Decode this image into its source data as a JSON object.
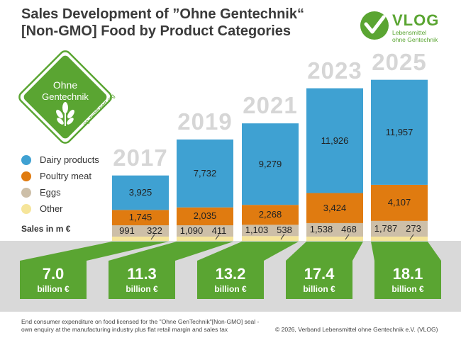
{
  "header": {
    "title_line1": "Sales Development of ”Ohne Gentechnik“",
    "title_line2": "[Non-GMO] Food by Product Categories"
  },
  "brand": {
    "name": "VLOG",
    "tagline_line1": "Lebensmittel",
    "tagline_line2": "ohne Gentechnik"
  },
  "seal": {
    "line1": "Ohne",
    "line2": "Gentechnik",
    "url": "og-zertifiziert.org"
  },
  "chart_data": {
    "type": "stacked bar",
    "categories": [
      "2017",
      "2019",
      "2021",
      "2023",
      "2025"
    ],
    "series": [
      {
        "name": "Dairy products",
        "color": "#3fa1d2",
        "values": [
          3925,
          7732,
          9279,
          11926,
          11957
        ],
        "labels": [
          "3,925",
          "7,732",
          "9,279",
          "11,926",
          "11,957"
        ]
      },
      {
        "name": "Poultry meat",
        "color": "#e07b10",
        "values": [
          1745,
          2035,
          2268,
          3424,
          4107
        ],
        "labels": [
          "1,745",
          "2,035",
          "2,268",
          "3,424",
          "4,107"
        ]
      },
      {
        "name": "Eggs",
        "color": "#cdbfa8",
        "values": [
          991,
          1090,
          1103,
          1538,
          1787
        ],
        "labels": [
          "991",
          "1,090",
          "1,103",
          "1,538",
          "1,787"
        ]
      },
      {
        "name": "Other",
        "color": "#f6e59a",
        "values": [
          322,
          411,
          538,
          468,
          273
        ],
        "labels": [
          "322",
          "411",
          "538",
          "468",
          "273"
        ]
      }
    ],
    "ylabel": "Sales in m €",
    "totals": [
      {
        "value": "7.0",
        "unit": "billion €"
      },
      {
        "value": "11.3",
        "unit": "billion €"
      },
      {
        "value": "13.2",
        "unit": "billion €"
      },
      {
        "value": "17.4",
        "unit": "billion €"
      },
      {
        "value": "18.1",
        "unit": "billion €"
      }
    ]
  },
  "footer": {
    "note_line1": "End consumer expenditure on food licensed for the \"Ohne GenTechnik\"[Non-GMO] seal -",
    "note_line2": "own enquiry at the manufacturing industry plus flat retail margin and sales tax",
    "copyright": "© 2026, Verband Lebensmittel ohne Gentechnik e.V. (VLOG)"
  },
  "colors": {
    "green": "#5aa532",
    "floor": "#d9d9d9",
    "year": "#d6d6d6"
  }
}
